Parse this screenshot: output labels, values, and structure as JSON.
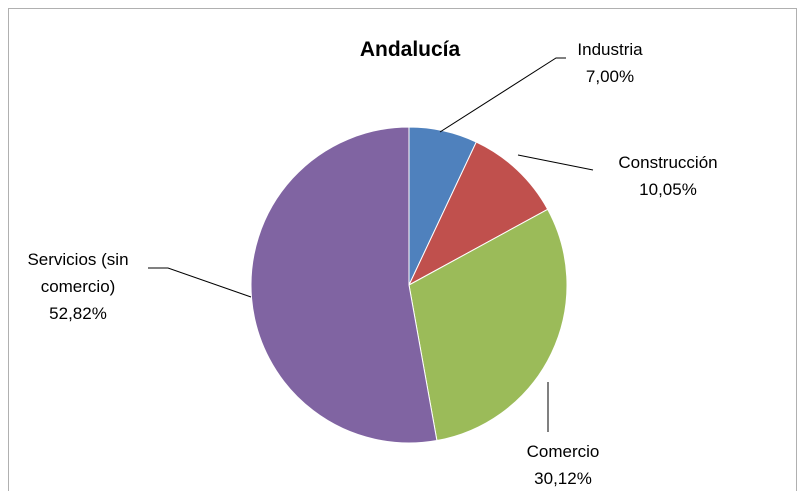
{
  "chart_data": {
    "type": "pie",
    "title": "Andalucía",
    "categories": [
      "Industria",
      "Construcción",
      "Comercio",
      "Servicios (sin comercio)"
    ],
    "values": [
      7.0,
      10.05,
      30.12,
      52.82
    ],
    "value_labels": [
      "7,00%",
      "10,05%",
      "30,12%",
      "52,82%"
    ],
    "colors": [
      "#4f81bd",
      "#c0504d",
      "#9bbb59",
      "#8064a2"
    ]
  }
}
